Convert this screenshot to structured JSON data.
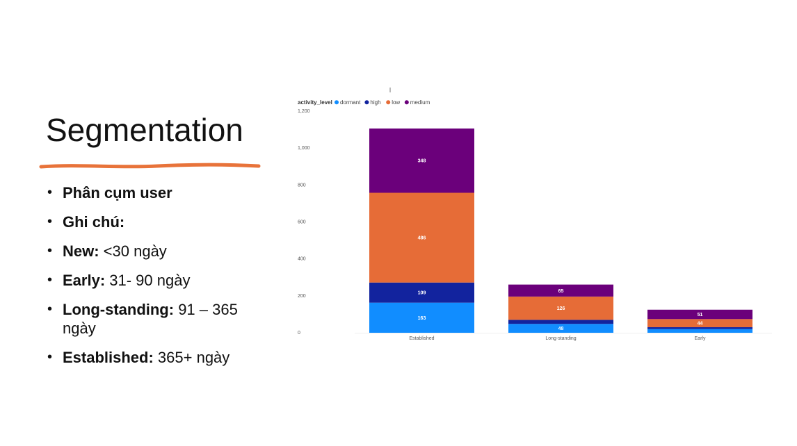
{
  "slide": {
    "title": "Segmentation",
    "bullets": [
      {
        "term": "Phân cụm user",
        "text": ""
      },
      {
        "term": "Ghi chú:",
        "text": ""
      },
      {
        "term": "New:",
        "text": " <30 ngày"
      },
      {
        "term": "Early:",
        "text": " 31- 90 ngày"
      },
      {
        "term": "Long-standing:",
        "text": " 91 – 365 ngày"
      },
      {
        "term": "Established:",
        "text": " 365+ ngày"
      }
    ],
    "accent_color": "#E8733A"
  },
  "chart_data": {
    "type": "bar",
    "stacked": true,
    "legend_title": "activity_level",
    "legend_position": "top-left",
    "categories": [
      "Established",
      "Long-standing",
      "Early"
    ],
    "series": [
      {
        "name": "dormant",
        "color": "#118DFF",
        "values": [
          163,
          48,
          20
        ],
        "labels": [
          "163",
          "48",
          ""
        ]
      },
      {
        "name": "high",
        "color": "#12239E",
        "values": [
          109,
          22,
          10
        ],
        "labels": [
          "109",
          "",
          ""
        ]
      },
      {
        "name": "low",
        "color": "#E66C37",
        "values": [
          486,
          126,
          44
        ],
        "labels": [
          "486",
          "126",
          "44"
        ]
      },
      {
        "name": "medium",
        "color": "#6B007B",
        "values": [
          348,
          65,
          51
        ],
        "labels": [
          "348",
          "65",
          "51"
        ]
      }
    ],
    "ylim": [
      0,
      1200
    ],
    "yticks": [
      0,
      200,
      400,
      600,
      800,
      1000,
      1200
    ],
    "ytick_labels": [
      "0",
      "200",
      "400",
      "600",
      "800",
      "1,000",
      "1,200"
    ],
    "grid": false
  }
}
